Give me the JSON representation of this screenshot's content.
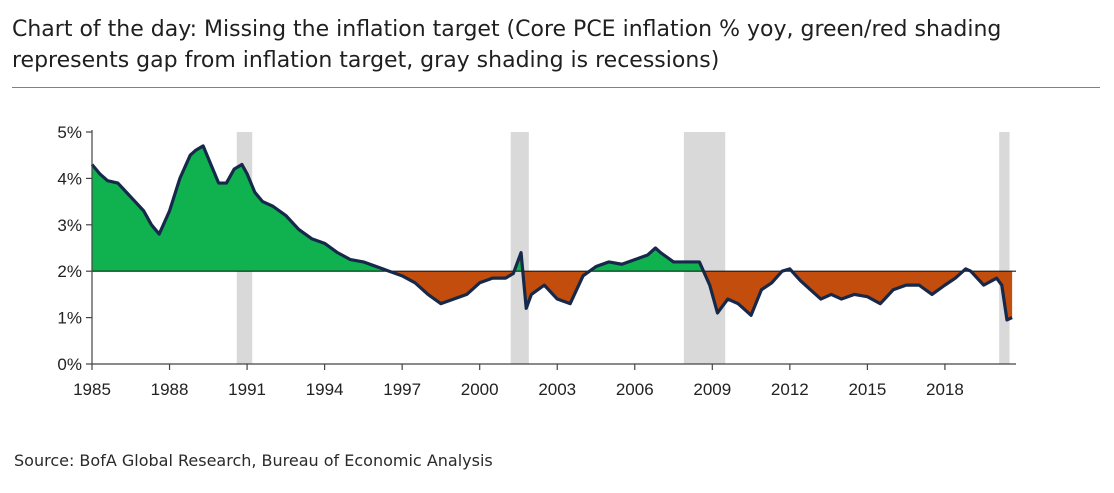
{
  "title": "Chart of the day: Missing the inflation target (Core PCE inflation % yoy, green/red shading represents gap from inflation target, gray shading is recessions)",
  "source": "Source: BofA Global Research, Bureau of Economic Analysis",
  "colors": {
    "line": "#16294a",
    "above_target": "#0fb24f",
    "below_target": "#c24d0c",
    "recession": "#d9d9d9",
    "target_line": "#1a1a1a",
    "axis": "#444444",
    "title_rule": "#6d84a8"
  },
  "chart_data": {
    "type": "area",
    "title": "",
    "xlabel": "",
    "ylabel": "",
    "target": 2,
    "ylim": [
      0,
      5
    ],
    "xlim": [
      1985,
      2020.75
    ],
    "y_ticks": [
      {
        "value": 0,
        "label": "0%"
      },
      {
        "value": 1,
        "label": "1%"
      },
      {
        "value": 2,
        "label": "2%"
      },
      {
        "value": 3,
        "label": "3%"
      },
      {
        "value": 4,
        "label": "4%"
      },
      {
        "value": 5,
        "label": "5%"
      }
    ],
    "x_ticks": [
      {
        "value": 1985,
        "label": "1985"
      },
      {
        "value": 1988,
        "label": "1988"
      },
      {
        "value": 1991,
        "label": "1991"
      },
      {
        "value": 1994,
        "label": "1994"
      },
      {
        "value": 1997,
        "label": "1997"
      },
      {
        "value": 2000,
        "label": "2000"
      },
      {
        "value": 2003,
        "label": "2003"
      },
      {
        "value": 2006,
        "label": "2006"
      },
      {
        "value": 2009,
        "label": "2009"
      },
      {
        "value": 2012,
        "label": "2012"
      },
      {
        "value": 2015,
        "label": "2015"
      },
      {
        "value": 2018,
        "label": "2018"
      }
    ],
    "recessions": [
      {
        "start": 1990.6,
        "end": 1991.2
      },
      {
        "start": 2001.2,
        "end": 2001.9
      },
      {
        "start": 2007.9,
        "end": 2009.5
      },
      {
        "start": 2020.1,
        "end": 2020.5
      }
    ],
    "series": [
      {
        "x": [
          1985.0,
          1985.3,
          1985.6,
          1986.0,
          1986.5,
          1987.0,
          1987.3,
          1987.6,
          1988.0,
          1988.4,
          1988.8,
          1989.0,
          1989.3,
          1989.6,
          1989.9,
          1990.2,
          1990.5,
          1990.8,
          1991.0,
          1991.3,
          1991.6,
          1992.0,
          1992.5,
          1993.0,
          1993.5,
          1994.0,
          1994.5,
          1995.0,
          1995.5,
          1996.0,
          1996.5,
          1997.0,
          1997.5,
          1998.0,
          1998.5,
          1999.0,
          1999.5,
          2000.0,
          2000.5,
          2001.0,
          2001.3,
          2001.6,
          2001.8,
          2002.0,
          2002.5,
          2003.0,
          2003.5,
          2004.0,
          2004.5,
          2005.0,
          2005.5,
          2006.0,
          2006.5,
          2006.8,
          2007.0,
          2007.5,
          2008.0,
          2008.5,
          2008.9,
          2009.2,
          2009.6,
          2010.0,
          2010.5,
          2010.9,
          2011.3,
          2011.7,
          2012.0,
          2012.4,
          2012.8,
          2013.2,
          2013.6,
          2014.0,
          2014.5,
          2015.0,
          2015.5,
          2016.0,
          2016.5,
          2017.0,
          2017.5,
          2018.0,
          2018.4,
          2018.8,
          2019.0,
          2019.5,
          2020.0,
          2020.2,
          2020.4,
          2020.6
        ],
        "y": [
          4.3,
          4.1,
          3.95,
          3.9,
          3.6,
          3.3,
          3.0,
          2.8,
          3.3,
          4.0,
          4.5,
          4.6,
          4.7,
          4.3,
          3.9,
          3.9,
          4.2,
          4.3,
          4.1,
          3.7,
          3.5,
          3.4,
          3.2,
          2.9,
          2.7,
          2.6,
          2.4,
          2.25,
          2.2,
          2.1,
          2.0,
          1.9,
          1.75,
          1.5,
          1.3,
          1.4,
          1.5,
          1.75,
          1.85,
          1.85,
          1.95,
          2.4,
          1.2,
          1.5,
          1.7,
          1.4,
          1.3,
          1.9,
          2.1,
          2.2,
          2.15,
          2.25,
          2.35,
          2.5,
          2.4,
          2.2,
          2.2,
          2.2,
          1.7,
          1.1,
          1.4,
          1.3,
          1.05,
          1.6,
          1.75,
          2.0,
          2.05,
          1.8,
          1.6,
          1.4,
          1.5,
          1.4,
          1.5,
          1.45,
          1.3,
          1.6,
          1.7,
          1.7,
          1.5,
          1.7,
          1.85,
          2.05,
          2.0,
          1.7,
          1.85,
          1.7,
          0.95,
          1.0
        ]
      }
    ]
  }
}
